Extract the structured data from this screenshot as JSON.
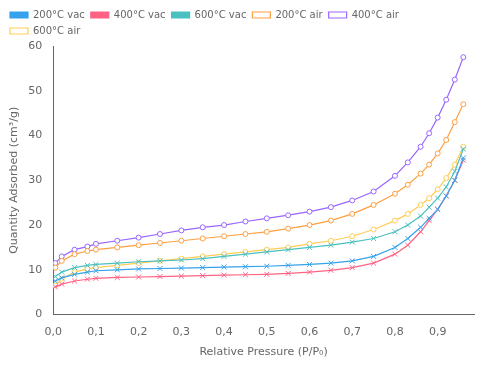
{
  "chart_data": {
    "type": "line",
    "xlabel": "Relative Pressure (P/P₀)",
    "ylabel": "Quantity Adsorbed (cm³/g)",
    "x": [
      0.005,
      0.02,
      0.05,
      0.08,
      0.1,
      0.15,
      0.2,
      0.25,
      0.3,
      0.35,
      0.4,
      0.45,
      0.5,
      0.55,
      0.6,
      0.65,
      0.7,
      0.75,
      0.8,
      0.83,
      0.86,
      0.88,
      0.9,
      0.92,
      0.94,
      0.96
    ],
    "series": [
      {
        "name": "200°C vac",
        "marker": "x",
        "values": [
          7.5,
          8.2,
          9.0,
          9.5,
          9.8,
          10.0,
          10.2,
          10.3,
          10.4,
          10.5,
          10.6,
          10.7,
          10.8,
          11.0,
          11.2,
          11.5,
          12.0,
          13.0,
          15.0,
          17.0,
          19.5,
          21.5,
          23.5,
          26.5,
          30.0,
          35.0
        ]
      },
      {
        "name": "400°C vac",
        "marker": "x",
        "values": [
          6.2,
          6.8,
          7.5,
          7.9,
          8.1,
          8.3,
          8.4,
          8.5,
          8.6,
          8.7,
          8.8,
          8.9,
          9.0,
          9.2,
          9.5,
          9.9,
          10.5,
          11.5,
          13.5,
          15.5,
          18.5,
          21.0,
          23.5,
          26.5,
          30.0,
          34.5
        ]
      },
      {
        "name": "600°C vac",
        "marker": "x",
        "values": [
          8.5,
          9.5,
          10.5,
          11.0,
          11.2,
          11.5,
          11.8,
          12.0,
          12.2,
          12.5,
          13.0,
          13.5,
          14.0,
          14.5,
          15.0,
          15.5,
          16.2,
          17.0,
          18.5,
          20.0,
          22.0,
          24.0,
          26.0,
          28.5,
          32.0,
          37.0
        ]
      },
      {
        "name": "200°C air",
        "marker": "o",
        "values": [
          10.5,
          12.0,
          13.5,
          14.2,
          14.5,
          15.0,
          15.5,
          16.0,
          16.5,
          17.0,
          17.5,
          18.0,
          18.5,
          19.2,
          20.0,
          21.0,
          22.5,
          24.5,
          27.0,
          29.0,
          31.5,
          33.5,
          36.0,
          39.0,
          43.0,
          47.0
        ]
      },
      {
        "name": "400°C air",
        "marker": "o",
        "values": [
          11.5,
          13.0,
          14.5,
          15.2,
          15.8,
          16.5,
          17.2,
          18.0,
          18.8,
          19.5,
          20.0,
          20.8,
          21.5,
          22.2,
          23.0,
          24.0,
          25.5,
          27.5,
          31.0,
          34.0,
          37.5,
          40.5,
          44.0,
          48.0,
          52.5,
          57.5
        ]
      },
      {
        "name": "600°C air",
        "marker": "o",
        "values": [
          6.5,
          8.0,
          9.5,
          10.2,
          10.5,
          11.0,
          11.5,
          12.0,
          12.5,
          13.0,
          13.5,
          14.0,
          14.5,
          15.0,
          15.8,
          16.5,
          17.5,
          19.0,
          21.0,
          22.5,
          24.5,
          26.0,
          28.0,
          30.5,
          33.5,
          37.5
        ]
      }
    ],
    "xlim": [
      0.0,
      0.985
    ],
    "xticks": [
      {
        "value": 0.0,
        "label": "0,0"
      },
      {
        "value": 0.1,
        "label": "0,1"
      },
      {
        "value": 0.2,
        "label": "0,2"
      },
      {
        "value": 0.3,
        "label": "0,3"
      },
      {
        "value": 0.4,
        "label": "0,4"
      },
      {
        "value": 0.5,
        "label": "0,5"
      },
      {
        "value": 0.6,
        "label": "0,6"
      },
      {
        "value": 0.7,
        "label": "0,7"
      },
      {
        "value": 0.8,
        "label": "0,8"
      },
      {
        "value": 0.9,
        "label": "0,9"
      }
    ],
    "ylim": [
      0,
      60
    ],
    "yticks": [
      0,
      10,
      20,
      30,
      40,
      50,
      60
    ],
    "legend": "upper left",
    "grid": false
  }
}
